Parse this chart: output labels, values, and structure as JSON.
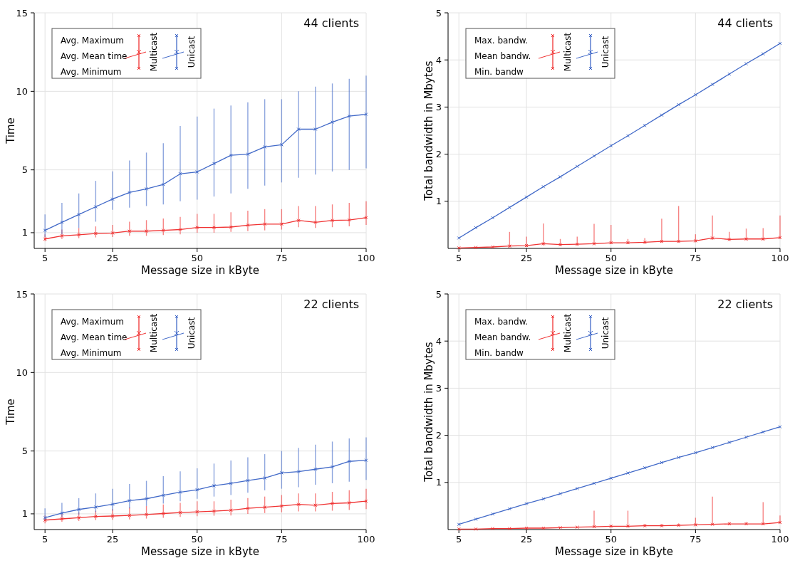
{
  "chart_data": [
    {
      "type": "line",
      "title": "44 clients",
      "xlabel": "Message size in kByte",
      "ylabel": "Time",
      "xlim": [
        1.8,
        100
      ],
      "xticks": [
        5,
        25,
        50,
        75,
        100
      ],
      "ylim": [
        0,
        15
      ],
      "yticks": [
        1,
        5,
        10,
        15
      ],
      "grid": true,
      "legend": "top left",
      "marker": "cross",
      "line_style": "solid",
      "annotations": [
        "Avg. Maximum",
        "Avg. Mean time",
        "Avg. Minimum"
      ],
      "x": [
        5,
        10,
        15,
        20,
        25,
        30,
        35,
        40,
        45,
        50,
        55,
        60,
        65,
        70,
        75,
        80,
        85,
        90,
        95,
        100
      ],
      "series": [
        {
          "name": "Multicast",
          "color": "#f03232",
          "values": [
            0.6,
            0.8,
            0.87,
            0.95,
            0.98,
            1.1,
            1.1,
            1.15,
            1.2,
            1.33,
            1.33,
            1.36,
            1.48,
            1.55,
            1.55,
            1.78,
            1.66,
            1.78,
            1.81,
            1.96
          ],
          "errors": [
            [
              0.45,
              0.9
            ],
            [
              0.6,
              1.2
            ],
            [
              0.65,
              1.3
            ],
            [
              0.7,
              1.4
            ],
            [
              0.72,
              1.5
            ],
            [
              0.8,
              1.7
            ],
            [
              0.8,
              1.8
            ],
            [
              0.85,
              1.9
            ],
            [
              0.9,
              2.0
            ],
            [
              1.0,
              2.2
            ],
            [
              1.0,
              2.2
            ],
            [
              1.05,
              2.3
            ],
            [
              1.1,
              2.4
            ],
            [
              1.15,
              2.5
            ],
            [
              1.2,
              2.5
            ],
            [
              1.35,
              2.7
            ],
            [
              1.3,
              2.7
            ],
            [
              1.35,
              2.8
            ],
            [
              1.4,
              2.9
            ],
            [
              1.5,
              3.0
            ]
          ]
        },
        {
          "name": "Unicast",
          "color": "#4169c8",
          "values": [
            1.15,
            1.66,
            2.16,
            2.65,
            3.14,
            3.56,
            3.79,
            4.07,
            4.75,
            4.87,
            5.4,
            5.93,
            6.0,
            6.46,
            6.6,
            7.59,
            7.59,
            8.04,
            8.42,
            8.54
          ],
          "errors": [
            [
              0.72,
              2.16
            ],
            [
              0.9,
              2.9
            ],
            [
              1.3,
              3.5
            ],
            [
              1.7,
              4.3
            ],
            [
              2.46,
              4.9
            ],
            [
              2.6,
              5.6
            ],
            [
              2.7,
              6.1
            ],
            [
              2.8,
              6.7
            ],
            [
              3.0,
              7.8
            ],
            [
              3.1,
              8.4
            ],
            [
              3.3,
              8.9
            ],
            [
              3.5,
              9.1
            ],
            [
              3.8,
              9.3
            ],
            [
              4.0,
              9.5
            ],
            [
              4.2,
              9.5
            ],
            [
              4.5,
              10.0
            ],
            [
              4.7,
              10.3
            ],
            [
              4.9,
              10.5
            ],
            [
              5.0,
              10.8
            ],
            [
              5.1,
              11.0
            ]
          ]
        }
      ]
    },
    {
      "type": "line",
      "title": "44 clients",
      "xlabel": "Message size in kByte",
      "ylabel": "Total bandwidth in Mbytes",
      "xlim": [
        1.8,
        100
      ],
      "xticks": [
        5,
        25,
        50,
        75,
        100
      ],
      "ylim": [
        0,
        5
      ],
      "yticks": [
        1,
        2,
        3,
        4,
        5
      ],
      "grid": true,
      "legend": "top left",
      "marker": "cross",
      "line_style": "solid",
      "annotations": [
        "Max. bandw.",
        "Mean bandw.",
        "Min. bandw"
      ],
      "x": [
        5,
        10,
        15,
        20,
        25,
        30,
        35,
        40,
        45,
        50,
        55,
        60,
        65,
        70,
        75,
        80,
        85,
        90,
        95,
        100
      ],
      "series": [
        {
          "name": "Multicast",
          "color": "#f03232",
          "values": [
            0.01,
            0.02,
            0.03,
            0.05,
            0.06,
            0.1,
            0.08,
            0.09,
            0.1,
            0.12,
            0.12,
            0.13,
            0.15,
            0.15,
            0.16,
            0.22,
            0.19,
            0.2,
            0.2,
            0.23
          ],
          "errors": [
            null,
            null,
            null,
            [
              0.02,
              0.35
            ],
            [
              0.03,
              0.25
            ],
            [
              0.06,
              0.53
            ],
            [
              0.05,
              0.2
            ],
            [
              0.06,
              0.25
            ],
            [
              0.07,
              0.52
            ],
            [
              0.09,
              0.5
            ],
            [
              0.09,
              0.2
            ],
            [
              0.1,
              0.22
            ],
            [
              0.12,
              0.63
            ],
            [
              0.12,
              0.9
            ],
            [
              0.13,
              0.3
            ],
            [
              0.18,
              0.7
            ],
            [
              0.16,
              0.35
            ],
            [
              0.17,
              0.42
            ],
            [
              0.17,
              0.43
            ],
            [
              0.2,
              0.7
            ]
          ]
        },
        {
          "name": "Unicast",
          "color": "#4169c8",
          "values": [
            0.22,
            0.44,
            0.65,
            0.87,
            1.09,
            1.31,
            1.52,
            1.74,
            1.96,
            2.18,
            2.39,
            2.61,
            2.83,
            3.05,
            3.26,
            3.48,
            3.7,
            3.92,
            4.13,
            4.35
          ]
        }
      ]
    },
    {
      "type": "line",
      "title": "22 clients",
      "xlabel": "Message size in kByte",
      "ylabel": "Time",
      "xlim": [
        1.8,
        100
      ],
      "xticks": [
        5,
        25,
        50,
        75,
        100
      ],
      "ylim": [
        0,
        15
      ],
      "yticks": [
        1,
        5,
        10,
        15
      ],
      "grid": true,
      "legend": "top left",
      "marker": "cross",
      "line_style": "solid",
      "annotations": [
        "Avg. Maximum",
        "Avg. Mean time",
        "Avg. Minimum"
      ],
      "x": [
        5,
        10,
        15,
        20,
        25,
        30,
        35,
        40,
        45,
        50,
        55,
        60,
        65,
        70,
        75,
        80,
        85,
        90,
        95,
        100
      ],
      "series": [
        {
          "name": "Multicast",
          "color": "#f03232",
          "values": [
            0.6,
            0.68,
            0.75,
            0.83,
            0.86,
            0.9,
            0.96,
            1.02,
            1.08,
            1.13,
            1.17,
            1.23,
            1.35,
            1.42,
            1.5,
            1.6,
            1.55,
            1.66,
            1.7,
            1.81
          ],
          "errors": [
            [
              0.4,
              0.9
            ],
            [
              0.5,
              1.0
            ],
            [
              0.55,
              1.1
            ],
            [
              0.6,
              1.2
            ],
            [
              0.62,
              1.3
            ],
            [
              0.65,
              1.4
            ],
            [
              0.7,
              1.5
            ],
            [
              0.75,
              1.6
            ],
            [
              0.8,
              1.7
            ],
            [
              0.85,
              1.8
            ],
            [
              0.88,
              1.8
            ],
            [
              0.9,
              1.9
            ],
            [
              1.0,
              2.0
            ],
            [
              1.05,
              2.1
            ],
            [
              1.1,
              2.2
            ],
            [
              1.15,
              2.3
            ],
            [
              1.15,
              2.3
            ],
            [
              1.2,
              2.4
            ],
            [
              1.25,
              2.5
            ],
            [
              1.3,
              2.6
            ]
          ]
        },
        {
          "name": "Unicast",
          "color": "#4169c8",
          "values": [
            0.75,
            1.05,
            1.28,
            1.43,
            1.61,
            1.84,
            1.96,
            2.18,
            2.38,
            2.53,
            2.79,
            2.94,
            3.12,
            3.28,
            3.61,
            3.69,
            3.84,
            3.99,
            4.34,
            4.41
          ],
          "errors": [
            [
              0.6,
              1.35
            ],
            [
              0.8,
              1.7
            ],
            [
              0.95,
              2.0
            ],
            [
              1.1,
              2.3
            ],
            [
              1.2,
              2.6
            ],
            [
              1.35,
              2.9
            ],
            [
              1.5,
              3.1
            ],
            [
              1.65,
              3.4
            ],
            [
              1.8,
              3.7
            ],
            [
              1.96,
              3.9
            ],
            [
              2.1,
              4.2
            ],
            [
              2.2,
              4.4
            ],
            [
              2.35,
              4.6
            ],
            [
              2.5,
              4.8
            ],
            [
              2.6,
              5.0
            ],
            [
              2.7,
              5.2
            ],
            [
              2.85,
              5.4
            ],
            [
              2.95,
              5.6
            ],
            [
              3.05,
              5.8
            ],
            [
              3.16,
              5.87
            ]
          ]
        }
      ]
    },
    {
      "type": "line",
      "title": "22 clients",
      "xlabel": "Message size in kByte",
      "ylabel": "Total bandwidth in Mbytes",
      "xlim": [
        1.8,
        100
      ],
      "xticks": [
        5,
        25,
        50,
        75,
        100
      ],
      "ylim": [
        0,
        5
      ],
      "yticks": [
        1,
        2,
        3,
        4,
        5
      ],
      "grid": true,
      "legend": "top left",
      "marker": "cross",
      "line_style": "solid",
      "annotations": [
        "Max. bandw.",
        "Mean bandw.",
        "Min. bandw"
      ],
      "x": [
        5,
        10,
        15,
        20,
        25,
        30,
        35,
        40,
        45,
        50,
        55,
        60,
        65,
        70,
        75,
        80,
        85,
        90,
        95,
        100
      ],
      "series": [
        {
          "name": "Multicast",
          "color": "#f03232",
          "values": [
            0.01,
            0.01,
            0.02,
            0.02,
            0.03,
            0.03,
            0.04,
            0.05,
            0.06,
            0.07,
            0.07,
            0.08,
            0.08,
            0.09,
            0.1,
            0.11,
            0.12,
            0.12,
            0.12,
            0.15
          ],
          "errors": [
            null,
            null,
            null,
            null,
            null,
            null,
            null,
            null,
            [
              0.04,
              0.4
            ],
            [
              0.05,
              0.1
            ],
            [
              0.05,
              0.4
            ],
            [
              0.06,
              0.12
            ],
            [
              0.06,
              0.12
            ],
            [
              0.07,
              0.13
            ],
            [
              0.08,
              0.25
            ],
            [
              0.09,
              0.7
            ],
            [
              0.1,
              0.16
            ],
            [
              0.1,
              0.16
            ],
            [
              0.1,
              0.58
            ],
            [
              0.13,
              0.3
            ]
          ]
        },
        {
          "name": "Unicast",
          "color": "#4169c8",
          "values": [
            0.11,
            0.22,
            0.33,
            0.44,
            0.55,
            0.65,
            0.76,
            0.87,
            0.98,
            1.09,
            1.2,
            1.31,
            1.42,
            1.53,
            1.63,
            1.74,
            1.85,
            1.96,
            2.07,
            2.18
          ]
        }
      ]
    }
  ]
}
